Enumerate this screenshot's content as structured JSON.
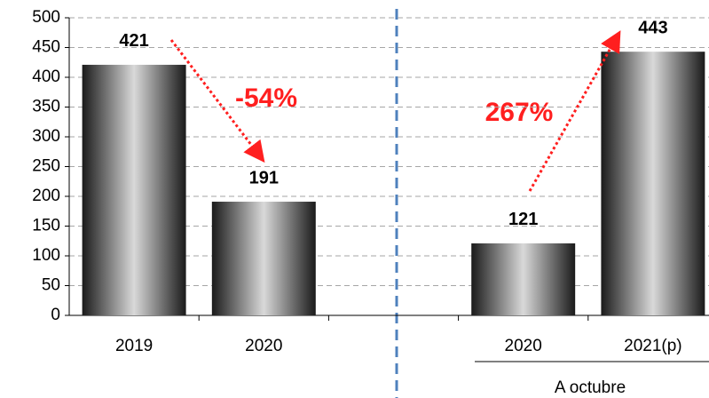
{
  "chart_data": {
    "type": "bar",
    "categories": [
      "2019",
      "2020",
      null,
      "2020",
      "2021(p)"
    ],
    "values": [
      421,
      191,
      null,
      121,
      443
    ],
    "color": "#1a1a1a",
    "ylim": [
      0,
      500
    ],
    "yticks": [
      0,
      50,
      100,
      150,
      200,
      250,
      300,
      350,
      400,
      450,
      500
    ],
    "grid": true,
    "annotations": [
      "-54%",
      "267%"
    ],
    "group_label": "A octubre"
  }
}
